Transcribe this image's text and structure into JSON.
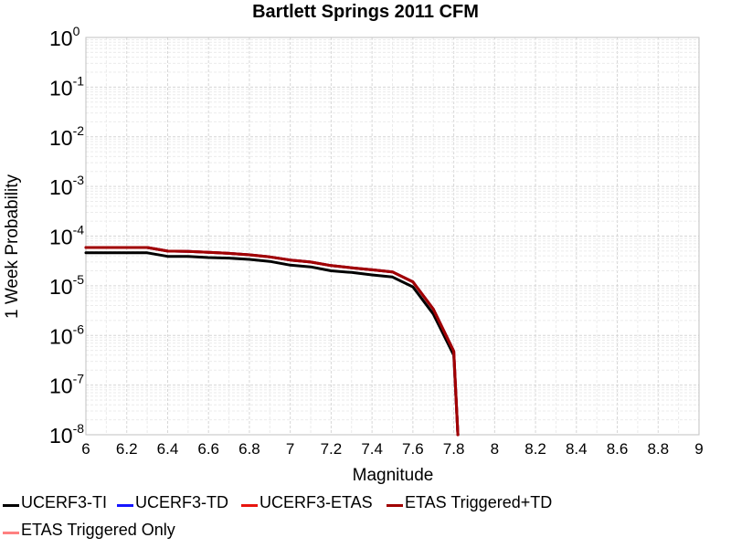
{
  "chart_data": {
    "type": "line",
    "title": "Bartlett Springs 2011 CFM",
    "xlabel": "Magnitude",
    "ylabel": "1 Week Probability",
    "xlim": [
      6,
      9
    ],
    "ylim": [
      1e-08,
      1
    ],
    "yscale": "log",
    "grid": true,
    "x_ticks": [
      "6",
      "6.2",
      "6.4",
      "6.6",
      "6.8",
      "7",
      "7.2",
      "7.4",
      "7.6",
      "7.8",
      "8",
      "8.2",
      "8.4",
      "8.6",
      "8.8",
      "9"
    ],
    "y_tick_exponents": [
      "0",
      "-1",
      "-2",
      "-3",
      "-4",
      "-5",
      "-6",
      "-7",
      "-8"
    ],
    "y_tick_base": "10",
    "legend_position": "bottom",
    "series": [
      {
        "name": "UCERF3-TI",
        "color": "#000000",
        "x": [
          6.0,
          6.1,
          6.2,
          6.3,
          6.4,
          6.5,
          6.6,
          6.7,
          6.8,
          6.9,
          7.0,
          7.1,
          7.2,
          7.3,
          7.4,
          7.5,
          7.6,
          7.7,
          7.8,
          7.82
        ],
        "y": [
          4.6e-05,
          4.6e-05,
          4.6e-05,
          4.6e-05,
          3.9e-05,
          3.9e-05,
          3.7e-05,
          3.6e-05,
          3.4e-05,
          3.1e-05,
          2.6e-05,
          2.4e-05,
          2e-05,
          1.85e-05,
          1.65e-05,
          1.5e-05,
          9.5e-06,
          2.7e-06,
          4e-07,
          1e-08
        ]
      },
      {
        "name": "UCERF3-TD",
        "color": "#1515ff",
        "x": [
          6.0,
          6.1,
          6.2,
          6.3,
          6.4,
          6.5,
          6.6,
          6.7,
          6.8,
          6.9,
          7.0,
          7.1,
          7.2,
          7.3,
          7.4,
          7.5,
          7.6,
          7.7,
          7.8,
          7.82
        ],
        "y": [
          5.9e-05,
          5.9e-05,
          5.9e-05,
          5.9e-05,
          5e-05,
          4.9e-05,
          4.7e-05,
          4.5e-05,
          4.2e-05,
          3.8e-05,
          3.3e-05,
          3e-05,
          2.55e-05,
          2.3e-05,
          2.1e-05,
          1.9e-05,
          1.2e-05,
          3.4e-06,
          4.8e-07,
          1e-08
        ]
      },
      {
        "name": "UCERF3-ETAS",
        "color": "#e8150f",
        "x": [
          6.0,
          6.1,
          6.2,
          6.3,
          6.4,
          6.5,
          6.6,
          6.7,
          6.8,
          6.9,
          7.0,
          7.1,
          7.2,
          7.3,
          7.4,
          7.5,
          7.6,
          7.7,
          7.8,
          7.82
        ],
        "y": [
          5.9e-05,
          5.9e-05,
          5.9e-05,
          5.9e-05,
          5e-05,
          4.9e-05,
          4.7e-05,
          4.5e-05,
          4.2e-05,
          3.8e-05,
          3.3e-05,
          3e-05,
          2.55e-05,
          2.3e-05,
          2.1e-05,
          1.9e-05,
          1.2e-05,
          3.4e-06,
          4.8e-07,
          1e-08
        ]
      },
      {
        "name": "ETAS Triggered+TD",
        "color": "#a00000",
        "x": [
          6.0,
          6.1,
          6.2,
          6.3,
          6.4,
          6.5,
          6.6,
          6.7,
          6.8,
          6.9,
          7.0,
          7.1,
          7.2,
          7.3,
          7.4,
          7.5,
          7.6,
          7.7,
          7.8,
          7.82
        ],
        "y": [
          5.9e-05,
          5.9e-05,
          5.9e-05,
          5.9e-05,
          5e-05,
          4.9e-05,
          4.7e-05,
          4.5e-05,
          4.2e-05,
          3.8e-05,
          3.3e-05,
          3e-05,
          2.55e-05,
          2.3e-05,
          2.1e-05,
          1.9e-05,
          1.2e-05,
          3.4e-06,
          4.8e-07,
          1e-08
        ]
      },
      {
        "name": "ETAS Triggered Only",
        "color": "#ff8080",
        "x": [],
        "y": []
      }
    ]
  }
}
